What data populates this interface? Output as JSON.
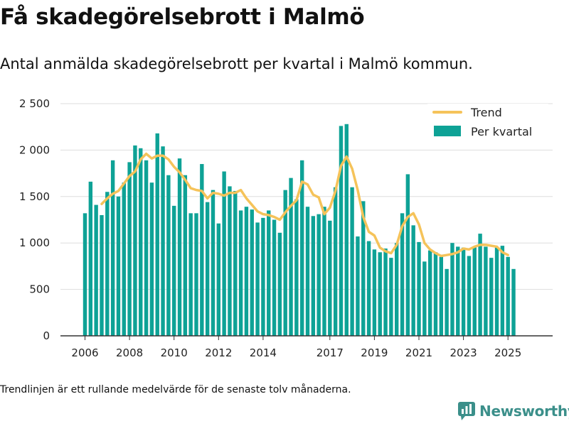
{
  "title": "Få skadegörelsebrott i Malmö",
  "subtitle": "Antal anmälda skadegörelsebrott per kvartal i Malmö kommun.",
  "footnote": "Trendlinjen är ett rullande medelvärde för de senaste tolv månaderna.",
  "brand": "Newsworthy",
  "colors": {
    "bar": "#0ea296",
    "trend": "#f5c35a",
    "grid": "#dddddd",
    "axis": "#333333"
  },
  "chart_data": {
    "type": "bar",
    "title": "",
    "xlabel": "",
    "ylabel": "",
    "ylim": [
      0,
      2500
    ],
    "yticks": [
      0,
      500,
      1000,
      1500,
      2000,
      2500
    ],
    "ytick_labels": [
      "0",
      "500",
      "1 000",
      "1 500",
      "2 000",
      "2 500"
    ],
    "xticks": [
      2006,
      2008,
      2010,
      2012,
      2014,
      2017,
      2019,
      2021,
      2023,
      2025
    ],
    "grid": true,
    "legend": "top-right",
    "series": [
      {
        "name": "Per kvartal",
        "type": "bar",
        "start_year": 2006,
        "start_quarter": 1,
        "values": [
          1320,
          1660,
          1410,
          1300,
          1550,
          1890,
          1500,
          1650,
          1870,
          2050,
          2020,
          1890,
          1650,
          2180,
          2040,
          1730,
          1400,
          1910,
          1730,
          1320,
          1320,
          1850,
          1440,
          1570,
          1210,
          1770,
          1610,
          1560,
          1350,
          1390,
          1360,
          1220,
          1270,
          1350,
          1250,
          1110,
          1570,
          1700,
          1470,
          1890,
          1390,
          1290,
          1310,
          1390,
          1240,
          1600,
          2260,
          2280,
          1600,
          1070,
          1450,
          1020,
          930,
          900,
          940,
          840,
          1000,
          1320,
          1740,
          1190,
          1010,
          800,
          920,
          900,
          850,
          720,
          1000,
          960,
          950,
          860,
          960,
          1100,
          960,
          840,
          950,
          970,
          850,
          720
        ]
      },
      {
        "name": "Trend",
        "type": "line",
        "start_year": 2006,
        "start_quarter": 4,
        "values": [
          1420,
          1480,
          1530,
          1560,
          1640,
          1720,
          1770,
          1900,
          1960,
          1910,
          1940,
          1940,
          1900,
          1820,
          1760,
          1680,
          1590,
          1570,
          1560,
          1480,
          1540,
          1530,
          1510,
          1540,
          1540,
          1570,
          1480,
          1410,
          1340,
          1310,
          1300,
          1280,
          1250,
          1330,
          1400,
          1460,
          1660,
          1630,
          1520,
          1490,
          1310,
          1380,
          1560,
          1830,
          1930,
          1800,
          1570,
          1280,
          1120,
          1080,
          950,
          910,
          890,
          980,
          1180,
          1280,
          1320,
          1200,
          1000,
          930,
          890,
          860,
          870,
          880,
          900,
          940,
          930,
          960,
          980,
          980,
          970,
          960,
          900,
          870
        ]
      }
    ]
  }
}
